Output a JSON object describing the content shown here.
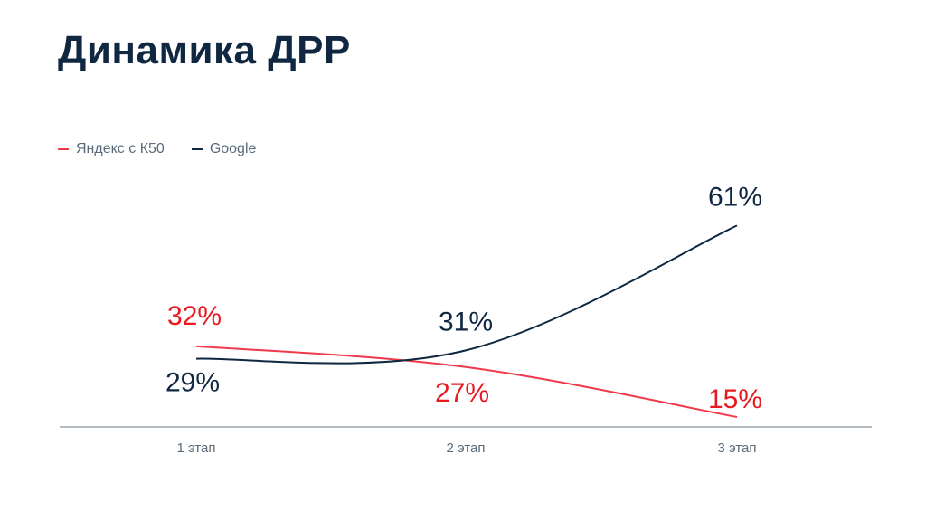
{
  "title": "Динамика ДРР",
  "colors": {
    "yandex": "#f03a4c",
    "yandex_label": "#e8191f",
    "google": "#0f2740",
    "axis": "#9aa3ab"
  },
  "chart_data": {
    "type": "line",
    "title": "Динамика ДРР",
    "categories": [
      "1 этап",
      "2 этап",
      "3 этап"
    ],
    "legend_position": "top-left",
    "grid": false,
    "ylim": [
      0,
      70
    ],
    "series": [
      {
        "name": "Яндекс с К50",
        "values": [
          32,
          27,
          15
        ],
        "labels": [
          "32%",
          "27%",
          "15%"
        ]
      },
      {
        "name": "Google",
        "values": [
          29,
          31,
          61
        ],
        "labels": [
          "29%",
          "31%",
          "61%"
        ]
      }
    ]
  }
}
